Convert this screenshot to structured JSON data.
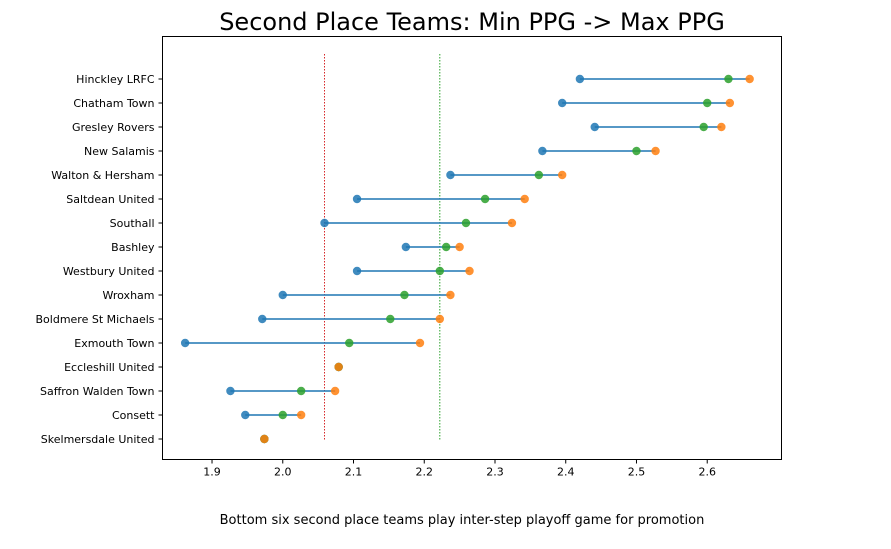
{
  "chart_data": {
    "type": "dumbbell",
    "title": "Second Place Teams: Min PPG -> Max PPG",
    "caption": "Bottom six second place teams play inter-step playoff game for promotion",
    "xlim": [
      1.83,
      2.705
    ],
    "x_ticks": [
      "1.9",
      "2.0",
      "2.1",
      "2.2",
      "2.3",
      "2.4",
      "2.5",
      "2.6"
    ],
    "x_tick_values": [
      1.9,
      2.0,
      2.1,
      2.2,
      2.3,
      2.4,
      2.5,
      2.6
    ],
    "reference_lines": [
      {
        "x": 2.059,
        "color": "#d62728",
        "style": "dotted"
      },
      {
        "x": 2.222,
        "color": "#2ca02c",
        "style": "dotted"
      }
    ],
    "colors": {
      "min": "#1f77b4",
      "current": "#2ca02c",
      "max": "#ff7f0e",
      "line": "#1f77b4"
    },
    "series_order": [
      "min",
      "current",
      "max"
    ],
    "teams": [
      {
        "name": "Hinckley LRFC",
        "min": 2.42,
        "current": 2.63,
        "max": 2.66
      },
      {
        "name": "Chatham Town",
        "min": 2.395,
        "current": 2.6,
        "max": 2.632
      },
      {
        "name": "Gresley Rovers",
        "min": 2.441,
        "current": 2.595,
        "max": 2.62
      },
      {
        "name": "New Salamis",
        "min": 2.367,
        "current": 2.5,
        "max": 2.527
      },
      {
        "name": "Walton & Hersham",
        "min": 2.237,
        "current": 2.362,
        "max": 2.395
      },
      {
        "name": "Saltdean United",
        "min": 2.105,
        "current": 2.286,
        "max": 2.342
      },
      {
        "name": "Southall",
        "min": 2.059,
        "current": 2.259,
        "max": 2.324
      },
      {
        "name": "Bashley",
        "min": 2.174,
        "current": 2.231,
        "max": 2.25
      },
      {
        "name": "Westbury United",
        "min": 2.105,
        "current": 2.222,
        "max": 2.264
      },
      {
        "name": "Wroxham",
        "min": 2.0,
        "current": 2.172,
        "max": 2.237
      },
      {
        "name": "Boldmere St Michaels",
        "min": 1.971,
        "current": 2.152,
        "max": 2.222
      },
      {
        "name": "Exmouth Town",
        "min": 1.862,
        "current": 2.094,
        "max": 2.194
      },
      {
        "name": "Eccleshill United",
        "min": 2.079,
        "current": 2.079,
        "max": 2.079
      },
      {
        "name": "Saffron Walden Town",
        "min": 1.926,
        "current": 2.026,
        "max": 2.074
      },
      {
        "name": "Consett",
        "min": 1.947,
        "current": 2.0,
        "max": 2.026
      },
      {
        "name": "Skelmersdale United",
        "min": 1.974,
        "current": 1.974,
        "max": 1.974
      }
    ]
  }
}
